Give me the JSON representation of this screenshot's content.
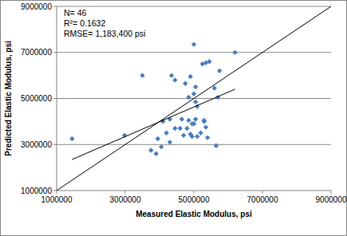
{
  "chart_data": {
    "type": "scatter",
    "x_label": "Measured Elastic Modulus, psi",
    "y_label": "Predicted Elastic Modulus, psi",
    "annotations": [
      "N= 46",
      "R²= 0.1632",
      "RMSE= 1,183,400 psi"
    ],
    "xlim": [
      1000000,
      9000000
    ],
    "ylim": [
      1000000,
      9000000
    ],
    "xticks": [
      1000000,
      3000000,
      5000000,
      7000000,
      9000000
    ],
    "yticks": [
      1000000,
      3000000,
      5000000,
      7000000,
      9000000
    ],
    "grid": "y",
    "series": [
      {
        "type": "scatter",
        "marker": "diamond",
        "color": "#4a7ebb",
        "x": [
          1450000,
          2980000,
          3500000,
          3750000,
          3900000,
          3950000,
          4050000,
          4100000,
          4200000,
          4300000,
          4300000,
          4350000,
          4450000,
          4450000,
          4600000,
          4650000,
          4700000,
          4750000,
          4800000,
          4850000,
          4850000,
          4900000,
          4900000,
          4950000,
          4950000,
          5000000,
          5000000,
          5000000,
          5050000,
          5050000,
          5050000,
          5100000,
          5100000,
          5200000,
          5250000,
          5300000,
          5350000,
          5350000,
          5400000,
          5450000,
          5600000,
          5650000,
          5700000,
          5750000,
          6200000,
          5300000
        ],
        "values": [
          3250000,
          3400000,
          6000000,
          2750000,
          2600000,
          3250000,
          2900000,
          4000000,
          3500000,
          3100000,
          4100000,
          6000000,
          5800000,
          3700000,
          3700000,
          4100000,
          3400000,
          5650000,
          3700000,
          4050000,
          5050000,
          5950000,
          3450000,
          3900000,
          3350000,
          7350000,
          5200000,
          3900000,
          5500000,
          4850000,
          4100000,
          3350000,
          4650000,
          3500000,
          6500000,
          4000000,
          6550000,
          3750000,
          3300000,
          6600000,
          5450000,
          2950000,
          5050000,
          6200000,
          7000000,
          4050000
        ]
      },
      {
        "type": "line",
        "color": "#000000",
        "x": [
          1450000,
          6200000
        ],
        "values": [
          2350000,
          5400000
        ]
      },
      {
        "type": "line",
        "color": "#000000",
        "x": [
          1000000,
          9000000
        ],
        "values": [
          1000000,
          9000000
        ]
      }
    ]
  }
}
